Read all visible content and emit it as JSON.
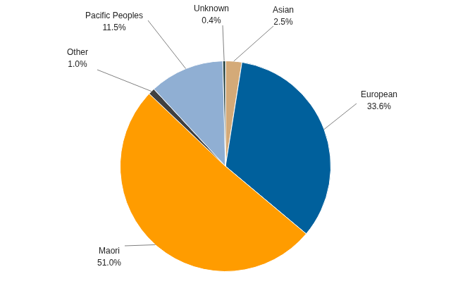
{
  "chart_data": {
    "type": "pie",
    "categories": [
      "Asian",
      "European",
      "Maori",
      "Other",
      "Pacific Peoples",
      "Unknown"
    ],
    "values": [
      2.5,
      33.6,
      51.0,
      1.0,
      11.5,
      0.4
    ],
    "value_labels": [
      "2.5%",
      "33.6%",
      "51.0%",
      "1.0%",
      "11.5%",
      "0.4%"
    ],
    "colors": [
      "#d4aa78",
      "#00609c",
      "#ff9c00",
      "#404040",
      "#90afd3",
      "#1e3c3c"
    ],
    "data_labels": true
  }
}
